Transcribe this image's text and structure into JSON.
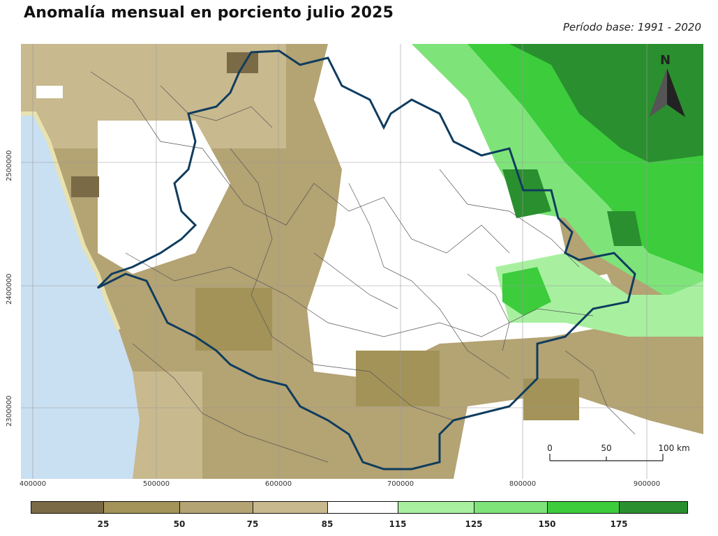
{
  "title": "Anomalía mensual en porciento julio 2025",
  "subtitle": "Período base: 1991 - 2020",
  "map": {
    "x_ticks": [
      "400000",
      "500000",
      "600000",
      "700000",
      "800000",
      "900000"
    ],
    "y_ticks": [
      "2500000",
      "2400000",
      "2300000"
    ],
    "north_label": "N",
    "scale_labels": [
      "0",
      "50",
      "100 km"
    ]
  },
  "legend": {
    "colors": [
      "#7a6a45",
      "#a39358",
      "#b4a373",
      "#c8b98e",
      "#ffffff",
      "#a8f0a0",
      "#7ee47a",
      "#3ccc3c",
      "#2a8f2e"
    ],
    "labels": [
      "25",
      "50",
      "75",
      "85",
      "115",
      "125",
      "150",
      "175"
    ]
  }
}
